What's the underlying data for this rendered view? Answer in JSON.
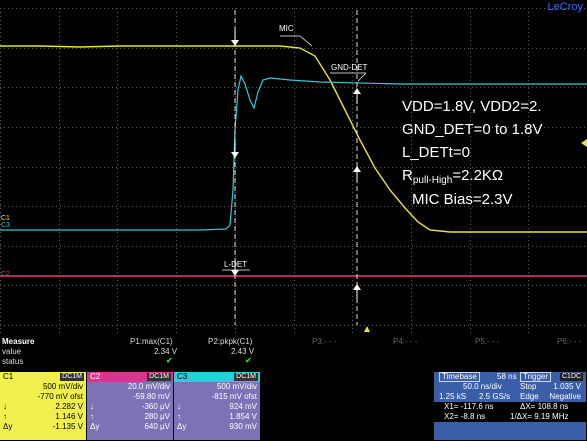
{
  "brand": "LeCroy",
  "annotations": {
    "vdd": "VDD=1.8V, VDD2=2.",
    "gnd_det": "GND_DET=0 to 1.8V",
    "l_det": "L_DETt=0",
    "r_prefix": "R",
    "r_sub": "pull-High",
    "r_val": "=2.2KΩ",
    "mic_bias": "MIC Bias=2.3V"
  },
  "trace_labels": {
    "mic": "MIC",
    "gnd_det": "GND-DET",
    "l_det": "L-DET",
    "ch_c1": "C1",
    "ch_c2": "C2",
    "ch_c3": "C3"
  },
  "measure": {
    "header": "Measure",
    "row_value": "value",
    "row_status": "status",
    "p1_name": "P1:max(C1)",
    "p1_value": "2.34 V",
    "p2_name": "P2:pkpk(C1)",
    "p2_value": "2.43 V",
    "p3": "P3:- - -",
    "p4": "P4:- - -",
    "p5": "P5:- - -",
    "p6": "P6:- - -",
    "check": "✔"
  },
  "channels": [
    {
      "name": "C1",
      "coupling": "DC1M",
      "vdiv": "500 mV/div",
      "ofst": "-770 mV ofst",
      "l": "2.282 V",
      "t": "1.146 V",
      "d": "-1.135 V",
      "bg": "#f0ef4d",
      "headbg": "#f0ef4d",
      "headfg": "#000"
    },
    {
      "name": "C2",
      "coupling": "DC1M",
      "vdiv": "20.0 mV/div",
      "ofst": "-59.80 mV",
      "l": "-360 µV",
      "t": "280 µV",
      "d": "640 µV",
      "bg": "#7d72b6",
      "headbg": "#d9348f",
      "headfg": "#fff"
    },
    {
      "name": "C3",
      "coupling": "DC1M",
      "vdiv": "500 mV/div",
      "ofst": "-815 mV ofst",
      "l": "924 mV",
      "t": "1.854 V",
      "d": "930 mV",
      "bg": "#7d72b6",
      "headbg": "#27d0d8",
      "headfg": "#000"
    }
  ],
  "timebase": {
    "label": "Timebase",
    "offset": "58 ns",
    "div": "50.0 ns/div",
    "samples": "1.25 kS",
    "rate": "2.5 GS/s",
    "x1": "X1= -117.6 ns",
    "dx": "ΔX= 108.8 ns",
    "x2": "X2= -8.8 ns",
    "inv_dx": "1/ΔX= 9.19 MHz"
  },
  "trigger": {
    "label": "Trigger",
    "channel": "C1DC",
    "mode": "Stop",
    "level": "1.035 V",
    "type": "Edge",
    "slope": "Negative"
  },
  "colors": {
    "c1": "#e8e23a",
    "c2": "#e8357e",
    "c3": "#35c8d4",
    "grid": "#5a5a5a",
    "timebase_bg": "#3a5ea8",
    "accent": "#3a6cff"
  }
}
